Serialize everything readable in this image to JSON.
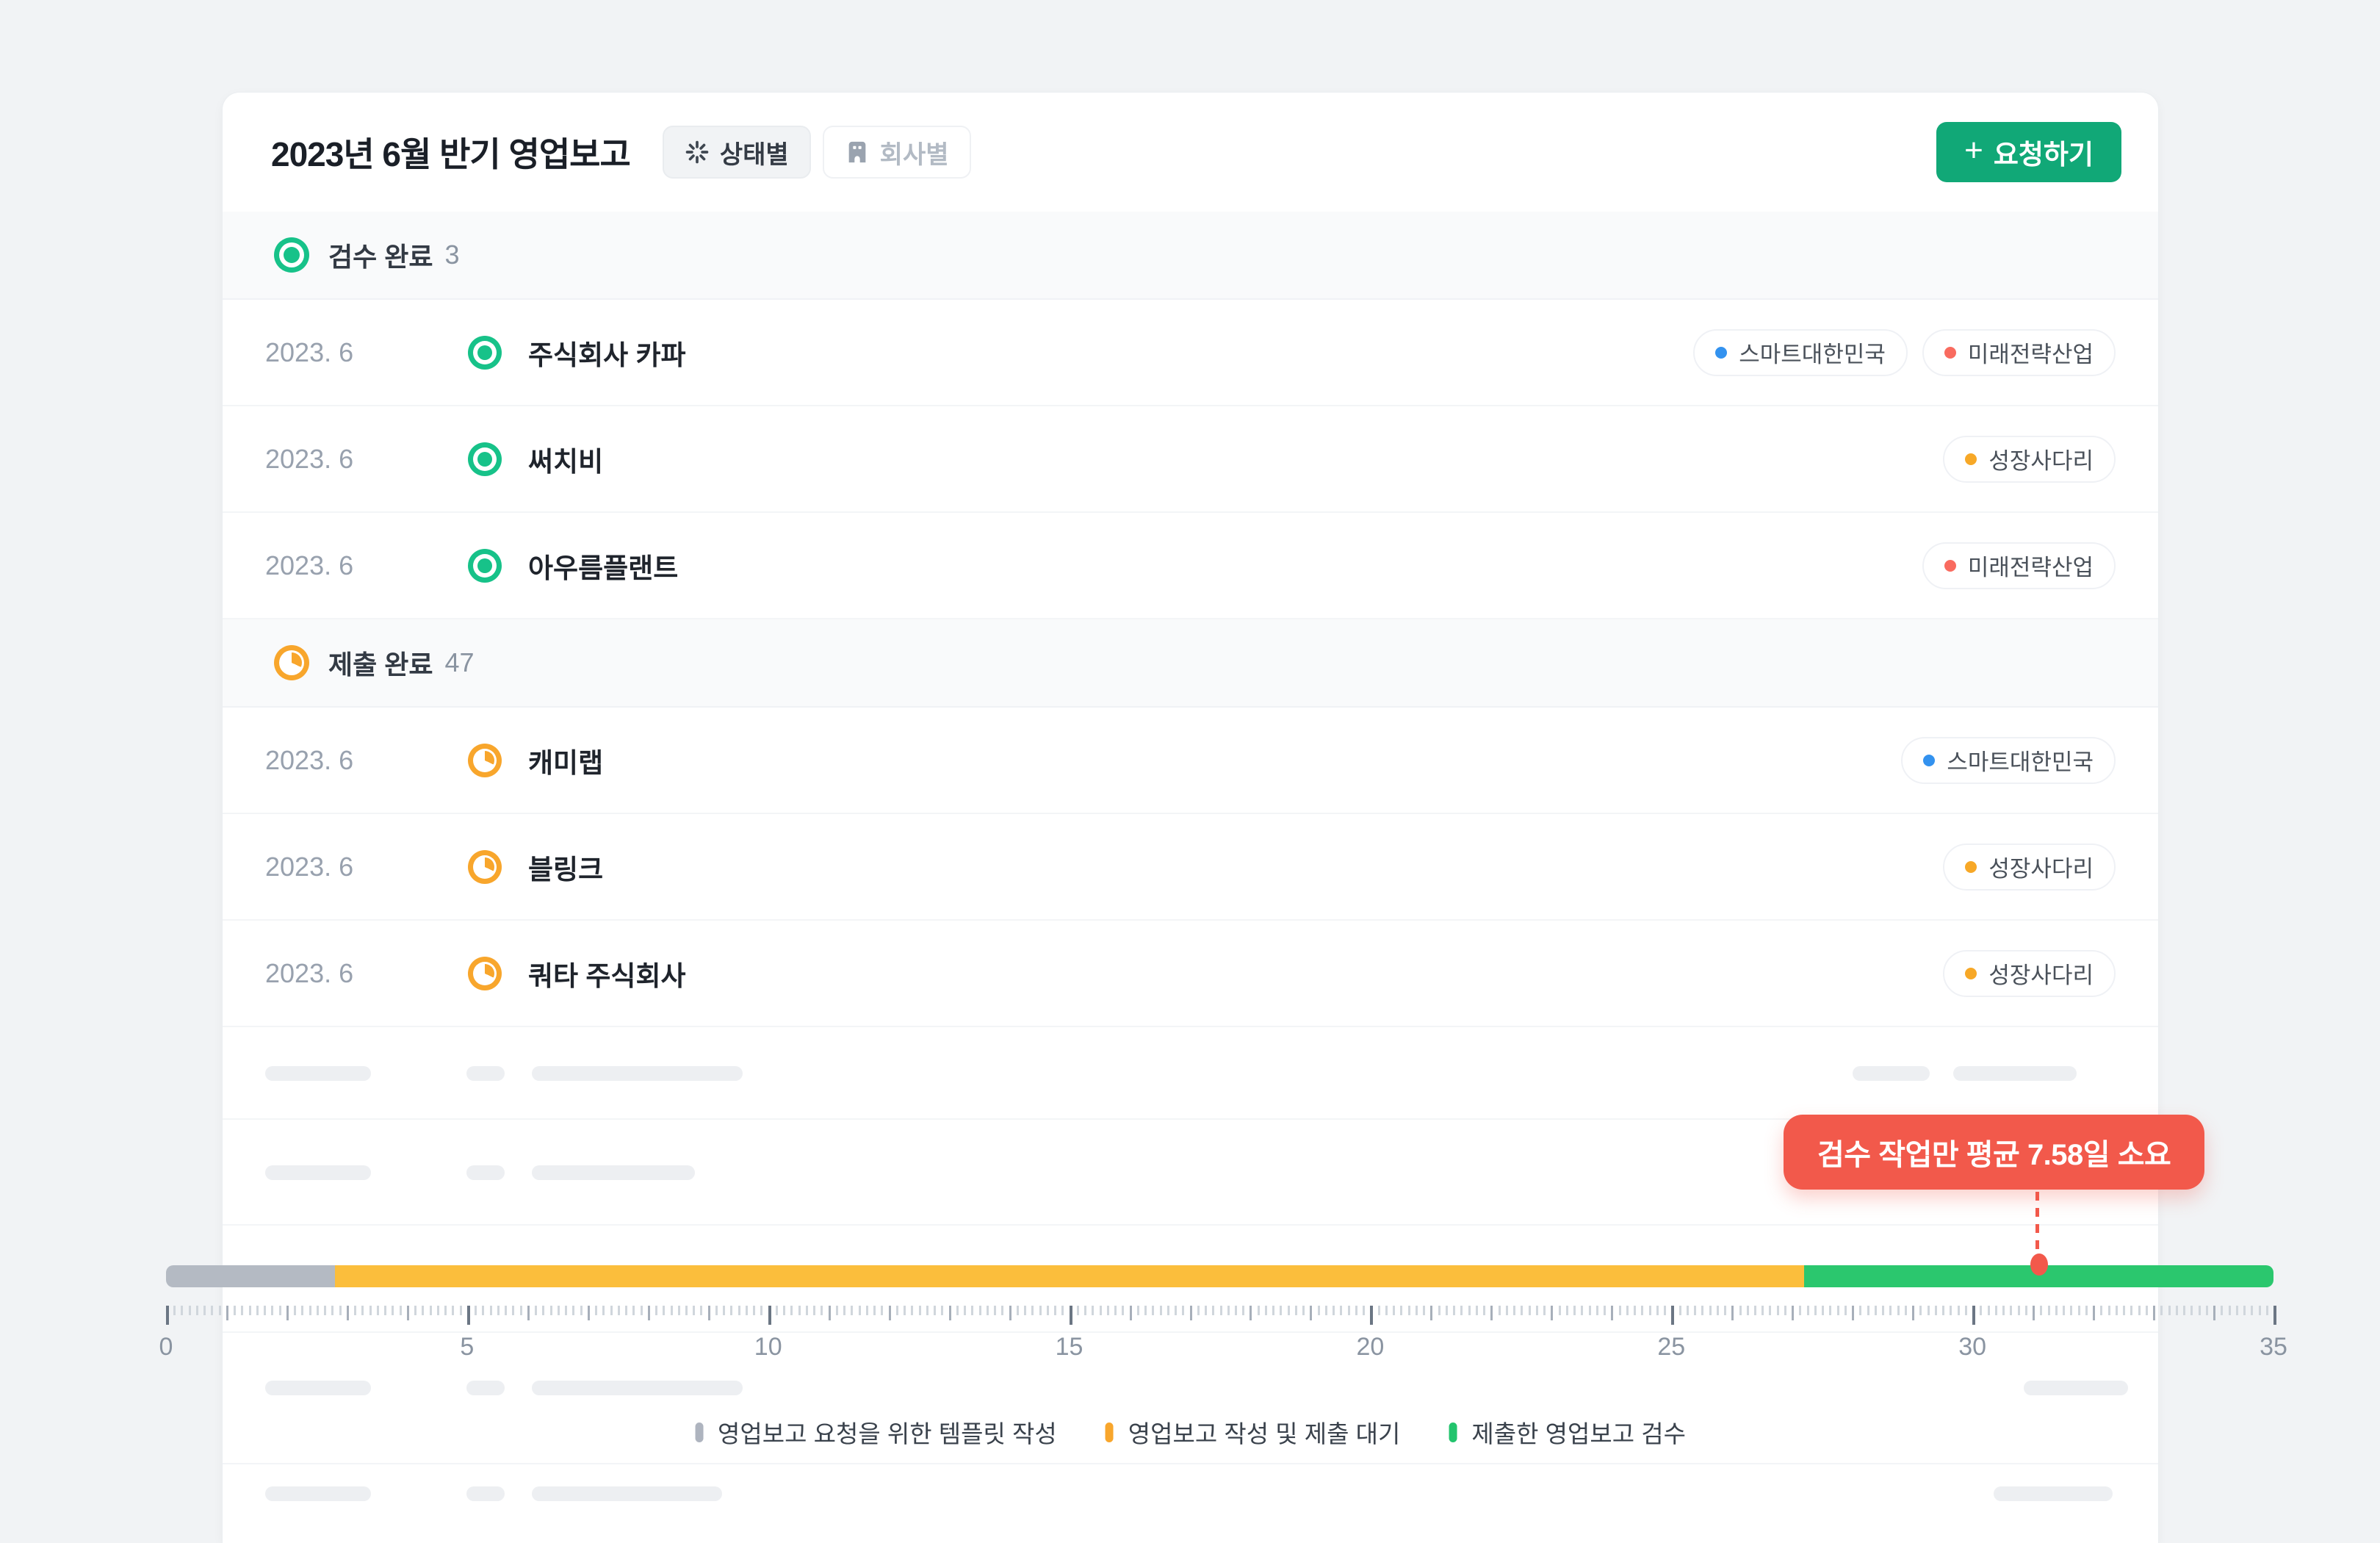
{
  "header": {
    "title": "2023년 6월 반기 영업보고",
    "toggle_status": "상태별",
    "toggle_company": "회사별",
    "request_plus": "+",
    "request_label": "요청하기"
  },
  "sections": [
    {
      "label": "검수 완료",
      "count": "3",
      "status": "done",
      "icon_color": "#17C289",
      "rows": [
        {
          "date": "2023. 6",
          "company": "주식회사 카파",
          "tags": [
            {
              "label": "스마트대한민국",
              "color": "#3392EF"
            },
            {
              "label": "미래전략산업",
              "color": "#F96B5F"
            }
          ]
        },
        {
          "date": "2023. 6",
          "company": "써치비",
          "tags": [
            {
              "label": "성장사다리",
              "color": "#F7A827"
            }
          ]
        },
        {
          "date": "2023. 6",
          "company": "아우름플랜트",
          "tags": [
            {
              "label": "미래전략산업",
              "color": "#F96B5F"
            }
          ]
        }
      ]
    },
    {
      "label": "제출 완료",
      "count": "47",
      "status": "pending",
      "icon_color": "#F8A62C",
      "rows": [
        {
          "date": "2023. 6",
          "company": "캐미랩",
          "tags": [
            {
              "label": "스마트대한민국",
              "color": "#3392EF"
            }
          ]
        },
        {
          "date": "2023. 6",
          "company": "블링크",
          "tags": [
            {
              "label": "성장사다리",
              "color": "#F7A827"
            }
          ]
        },
        {
          "date": "2023. 6",
          "company": "쿼타 주식회사",
          "tags": [
            {
              "label": "성장사다리",
              "color": "#F7A827"
            }
          ]
        }
      ]
    }
  ],
  "chart_data": {
    "type": "bar",
    "subtype": "horizontal-stacked-timeline",
    "unit": "days",
    "axis": {
      "min": 0,
      "max": 35,
      "major_ticks": [
        0,
        5,
        10,
        15,
        20,
        25,
        30,
        35
      ],
      "minor_per_unit": 8
    },
    "segments": [
      {
        "label": "영업보고 요청을 위한 템플릿 작성",
        "color": "#B4BAC3",
        "from": 0,
        "to": 2.8
      },
      {
        "label": "영업보고 작성 및 제출 대기",
        "color": "#FBBE3C",
        "from": 2.8,
        "to": 27.2
      },
      {
        "label": "제출한 영업보고 검수",
        "color": "#2BC76E",
        "from": 27.2,
        "to": 35
      }
    ],
    "marker": {
      "x_days": 31.1,
      "value_days": 7.58,
      "label": "검수 작업만 평균 7.58일 소요",
      "color": "#F2594B"
    },
    "legend": [
      {
        "label": "영업보고 요청을 위한 템플릿 작성",
        "color": "#AEB4BF"
      },
      {
        "label": "영업보고 작성 및 제출 대기",
        "color": "#F8A62C"
      },
      {
        "label": "제출한 영업보고 검수",
        "color": "#22C46D"
      }
    ],
    "legend_position": "bottom-center",
    "grid": false
  },
  "colors": {
    "page_bg": "#F1F3F5",
    "card_bg": "#FFFFFF",
    "accent_green": "#11A877",
    "status_done": "#17C289",
    "status_pending": "#F8A62C",
    "badge_red": "#F2594B"
  }
}
